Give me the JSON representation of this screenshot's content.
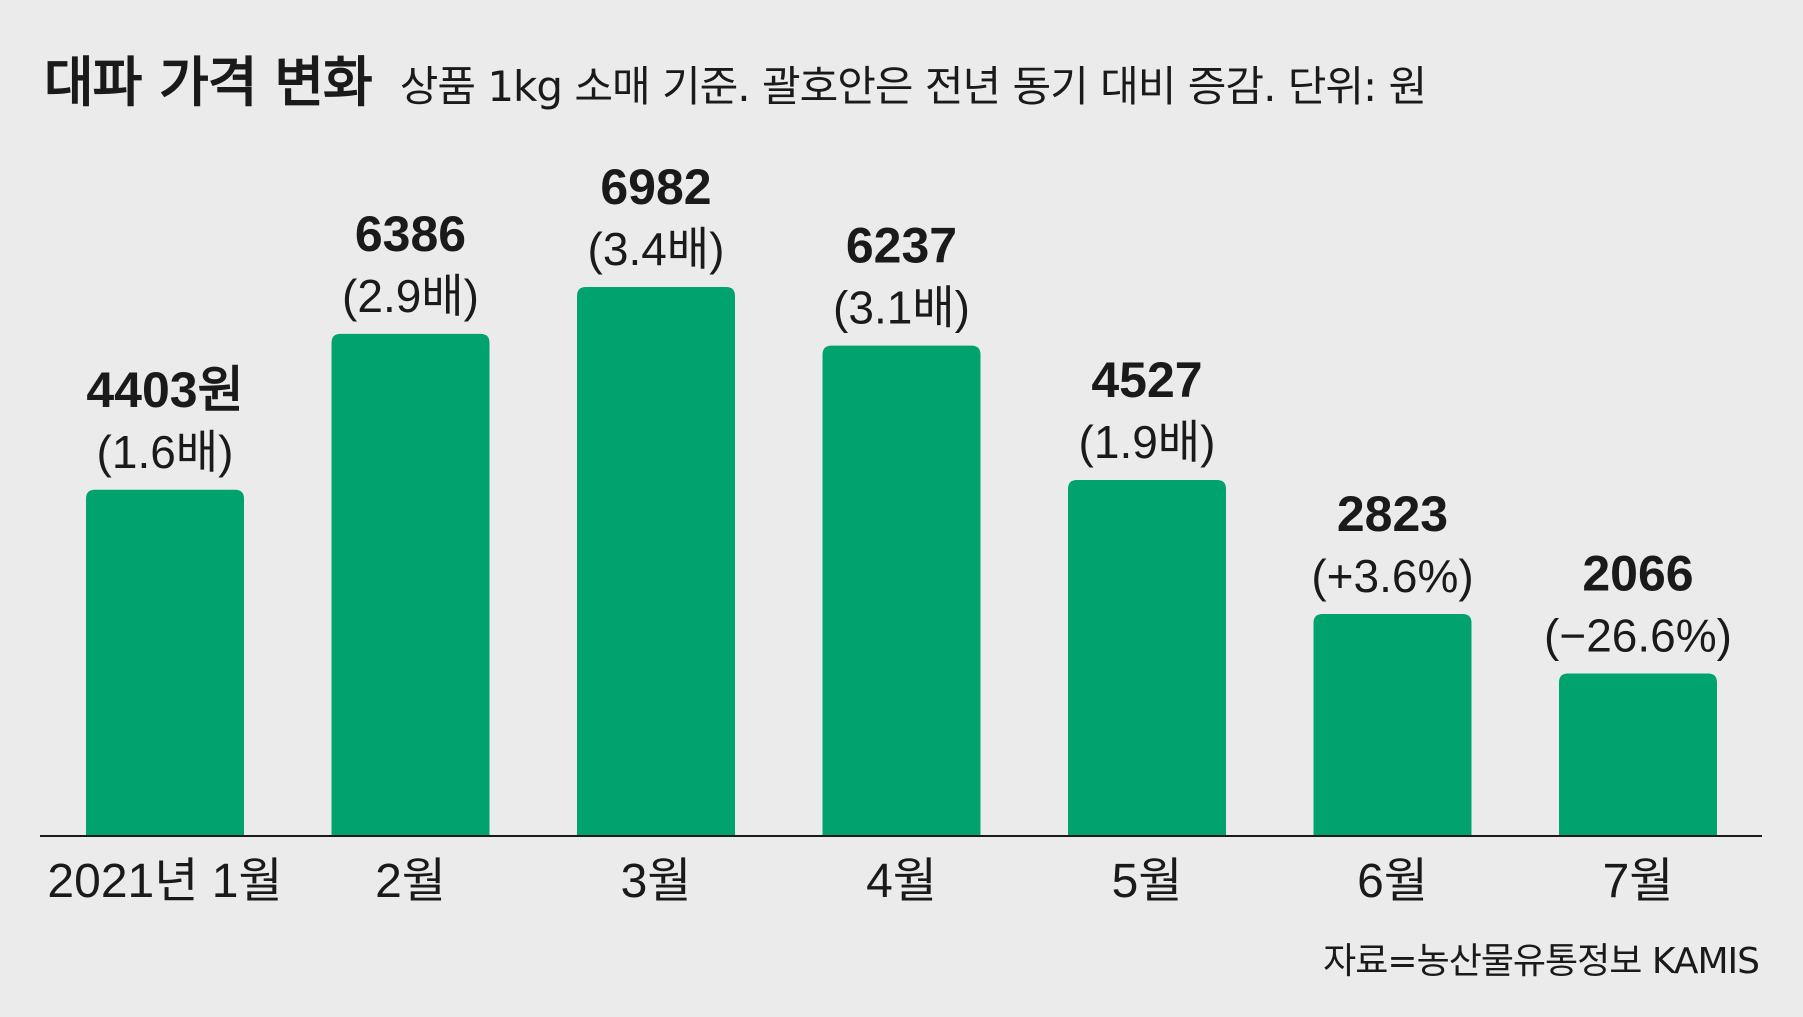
{
  "header": {
    "title": "대파 가격 변화",
    "subtitle": "상품 1kg 소매 기준. 괄호안은 전년 동기 대비 증감. 단위: 원"
  },
  "source": "자료=농산물유통정보 KAMIS",
  "colors": {
    "bar": "#00a36e",
    "background": "#ebebeb",
    "axis": "#1a1a1a",
    "text": "#1a1a1a"
  },
  "chart_data": {
    "type": "bar",
    "title": "대파 가격 변화",
    "subtitle": "상품 1kg 소매 기준. 괄호안은 전년 동기 대비 증감. 단위: 원",
    "categories": [
      "2021년 1월",
      "2월",
      "3월",
      "4월",
      "5월",
      "6월",
      "7월"
    ],
    "values": [
      4403,
      6386,
      6982,
      6237,
      4527,
      2823,
      2066
    ],
    "value_labels": [
      "4403원",
      "6386",
      "6982",
      "6237",
      "4527",
      "2823",
      "2066"
    ],
    "change_labels": [
      "(1.6배)",
      "(2.9배)",
      "(3.4배)",
      "(3.1배)",
      "(1.9배)",
      "(+3.6%)",
      "(−26.6%)"
    ],
    "ylim": [
      0,
      8000
    ],
    "grid": false,
    "legend": "none",
    "xlabel": "",
    "ylabel": ""
  }
}
